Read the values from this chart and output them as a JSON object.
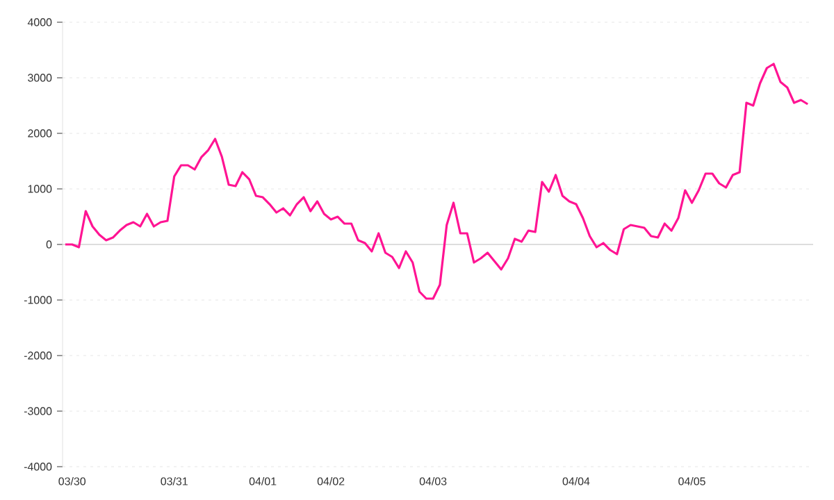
{
  "chart_data": {
    "type": "line",
    "categories": [
      null,
      "03/30",
      null,
      null,
      null,
      null,
      null,
      null,
      null,
      null,
      null,
      null,
      null,
      null,
      null,
      null,
      "03/31",
      null,
      null,
      null,
      null,
      null,
      null,
      null,
      null,
      null,
      null,
      null,
      null,
      "04/01",
      null,
      null,
      null,
      null,
      null,
      null,
      null,
      null,
      null,
      "04/02",
      null,
      null,
      null,
      null,
      null,
      null,
      null,
      null,
      null,
      null,
      null,
      null,
      null,
      null,
      "04/03",
      null,
      null,
      null,
      null,
      null,
      null,
      null,
      null,
      null,
      null,
      null,
      null,
      null,
      null,
      null,
      null,
      null,
      null,
      null,
      null,
      "04/04",
      null,
      null,
      null,
      null,
      null,
      null,
      null,
      null,
      null,
      null,
      null,
      null,
      null,
      null,
      null,
      null,
      "04/05",
      null,
      null,
      null,
      null,
      null,
      null,
      null,
      null,
      null,
      null,
      null,
      null,
      null,
      null,
      null,
      null,
      null
    ],
    "series": [
      {
        "color": "#ff1493",
        "values": [
          0,
          0,
          -50,
          600,
          325,
          175,
          75,
          125,
          250,
          350,
          400,
          325,
          550,
          325,
          400,
          425,
          1225,
          1425,
          1425,
          1350,
          1575,
          1700,
          1900,
          1575,
          1075,
          1050,
          1300,
          1175,
          875,
          850,
          725,
          575,
          650,
          525,
          725,
          850,
          600,
          775,
          550,
          450,
          500,
          375,
          375,
          75,
          25,
          -125,
          200,
          -150,
          -225,
          -425,
          -125,
          -325,
          -850,
          -975,
          -975,
          -725,
          350,
          750,
          200,
          200,
          -325,
          -250,
          -150,
          -300,
          -450,
          -250,
          100,
          50,
          250,
          225,
          1125,
          950,
          1250,
          875,
          775,
          725,
          475,
          150,
          -50,
          25,
          -100,
          -175,
          275,
          350,
          325,
          300,
          150,
          125,
          375,
          250,
          475,
          975,
          750,
          975,
          1275,
          1275,
          1100,
          1025,
          1250,
          1300,
          2550,
          2500,
          2900,
          3175,
          3250,
          2925,
          2825,
          2550,
          2600,
          2525
        ]
      }
    ],
    "ylim": [
      -4000,
      4000
    ],
    "yticks": [
      -4000,
      -3000,
      -2000,
      -1000,
      0,
      1000,
      2000,
      3000,
      4000
    ],
    "grid": "y",
    "marker": "none",
    "line_style": "solid",
    "ref_lines": [
      {
        "axis": "y",
        "value": 0,
        "color": "#dddddd"
      }
    ]
  }
}
